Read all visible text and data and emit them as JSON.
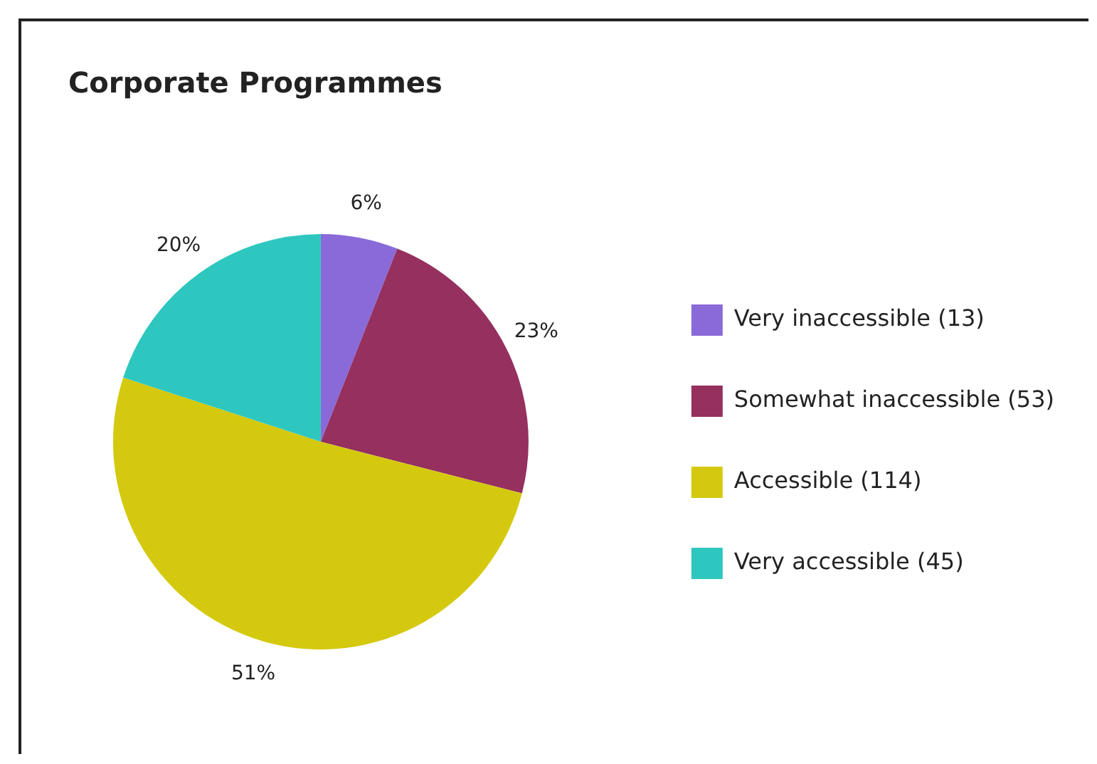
{
  "chart_data": {
    "type": "pie",
    "title": "Corporate Programmes",
    "categories": [
      "Very inaccessible (13)",
      "Somewhat inaccessible (53)",
      "Accessible (114)",
      "Very accessible (45)"
    ],
    "values": [
      6,
      23,
      51,
      20
    ],
    "value_labels": [
      "6%",
      "23%",
      "51%",
      "20%"
    ],
    "colors": [
      "#8a6ad8",
      "#95305f",
      "#d4c90f",
      "#2ec7bf"
    ],
    "legend": "right"
  }
}
